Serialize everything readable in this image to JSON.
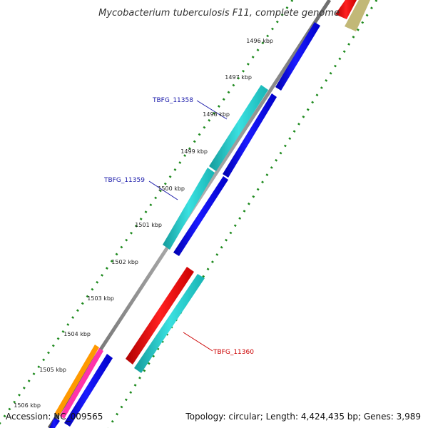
{
  "title": "Mycobacterium tuberculosis F11, complete genome",
  "ticks": [
    {
      "label": "1496 kbp"
    },
    {
      "label": "1497 kbp"
    },
    {
      "label": "1498 kbp"
    },
    {
      "label": "1499 kbp"
    },
    {
      "label": "1500 kbp"
    },
    {
      "label": "1501 kbp"
    },
    {
      "label": "1502 kbp"
    },
    {
      "label": "1503 kbp"
    },
    {
      "label": "1504 kbp"
    },
    {
      "label": "1505 kbp"
    },
    {
      "label": "1506 kbp"
    }
  ],
  "gene_labels": [
    {
      "name": "TBFG_11358",
      "color": "#1a1aaa"
    },
    {
      "name": "TBFG_11359",
      "color": "#1a1aaa"
    },
    {
      "name": "TBFG_11360",
      "color": "#cc0000"
    }
  ],
  "colors": {
    "backbone": "#808080",
    "cds_blue": "#0000ee",
    "cds_cyan": "#20c8c8",
    "cds_red": "#ee0000",
    "khaki": "#c2b877",
    "orange": "#ff9900",
    "pink": "#ff33aa",
    "dots": "#1e8a1e"
  },
  "footer": {
    "accession": "Accession: NC_009565",
    "summary": "Topology: circular; Length: 4,424,435 bp; Genes: 3,989"
  }
}
